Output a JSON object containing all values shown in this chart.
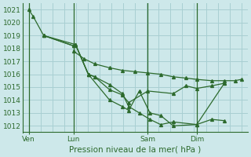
{
  "title": "Pression niveau de la mer( hPa )",
  "bg_color": "#cde8ea",
  "grid_color": "#a8cfd2",
  "line_color": "#2d6a2d",
  "ylim": [
    1011.5,
    1021.5
  ],
  "yticks": [
    1012,
    1013,
    1014,
    1015,
    1016,
    1017,
    1018,
    1019,
    1020,
    1021
  ],
  "xtick_labels": [
    "Ven",
    "Lun",
    "Sam",
    "Dim"
  ],
  "xtick_positions": [
    0.0,
    0.21,
    0.56,
    0.79
  ],
  "vline_positions": [
    0.0,
    0.21,
    0.56,
    0.79
  ],
  "series": [
    {
      "x": [
        0.0,
        0.02,
        0.07,
        0.21,
        0.22,
        0.28,
        0.31,
        0.38,
        0.44,
        0.47,
        0.56,
        0.68,
        0.74,
        0.79,
        0.86,
        0.92
      ],
      "y": [
        1021.0,
        1020.5,
        1019.0,
        1018.2,
        1018.3,
        1016.0,
        1015.8,
        1014.8,
        1014.4,
        1013.8,
        1014.7,
        1014.5,
        1015.1,
        1014.9,
        1015.1,
        1015.3
      ]
    },
    {
      "x": [
        0.07,
        0.21,
        0.22,
        0.28,
        0.38,
        0.44,
        0.47,
        0.52,
        0.57,
        0.62,
        0.68,
        0.79,
        0.86,
        0.92
      ],
      "y": [
        1019.0,
        1018.2,
        1018.3,
        1016.0,
        1014.0,
        1013.5,
        1013.2,
        1014.7,
        1013.0,
        1012.8,
        1012.0,
        1012.1,
        1012.5,
        1012.4
      ]
    },
    {
      "x": [
        0.07,
        0.22,
        0.28,
        0.31,
        0.38,
        0.44,
        0.47,
        0.52,
        0.57,
        0.62,
        0.68,
        0.79,
        0.92
      ],
      "y": [
        1019.0,
        1018.3,
        1016.0,
        1015.8,
        1015.2,
        1014.5,
        1013.5,
        1013.0,
        1012.5,
        1012.1,
        1012.3,
        1012.1,
        1015.3
      ]
    },
    {
      "x": [
        0.21,
        0.26,
        0.31,
        0.38,
        0.44,
        0.5,
        0.56,
        0.62,
        0.68,
        0.74,
        0.79,
        0.86,
        0.92,
        0.97,
        1.0
      ],
      "y": [
        1017.8,
        1017.2,
        1016.8,
        1016.5,
        1016.3,
        1016.2,
        1016.1,
        1016.0,
        1015.8,
        1015.7,
        1015.6,
        1015.5,
        1015.5,
        1015.5,
        1015.6
      ]
    }
  ],
  "xlim": [
    -0.03,
    1.03
  ]
}
